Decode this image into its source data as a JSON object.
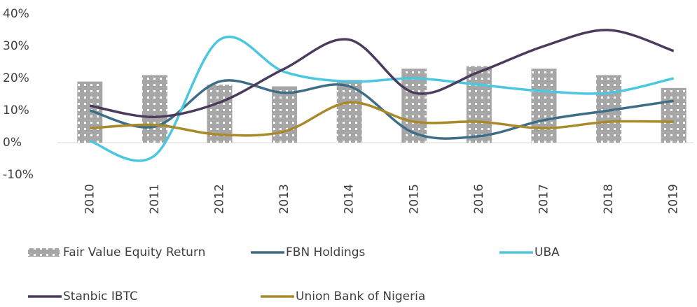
{
  "chart_data": {
    "type": "bar",
    "categories": [
      "2010",
      "2011",
      "2012",
      "2013",
      "2014",
      "2015",
      "2016",
      "2017",
      "2018",
      "2019"
    ],
    "ylim": [
      -10,
      40
    ],
    "yticks": [
      {
        "value": -10,
        "label": "-10%"
      },
      {
        "value": 0,
        "label": "0%"
      },
      {
        "value": 10,
        "label": "10%"
      },
      {
        "value": 20,
        "label": "20%"
      },
      {
        "value": 30,
        "label": "30%"
      },
      {
        "value": 40,
        "label": "40%"
      }
    ],
    "grid": false,
    "series": [
      {
        "name": "Fair Value Equity Return",
        "type": "bar",
        "color": "#a6a6a6",
        "values": [
          19,
          21,
          18,
          17.5,
          19.5,
          23,
          23.8,
          23,
          21,
          17
        ]
      },
      {
        "name": "FBN Holdings",
        "type": "line",
        "color": "#3e6e87",
        "values": [
          10,
          5,
          19,
          15.5,
          17.5,
          3,
          2,
          7,
          10,
          13
        ]
      },
      {
        "name": "UBA",
        "type": "line",
        "color": "#4bc8e0",
        "values": [
          0.5,
          -4,
          32,
          22,
          19,
          20,
          18,
          16,
          15.5,
          20
        ]
      },
      {
        "name": "Stanbic IBTC",
        "type": "line",
        "color": "#4b3b5c",
        "values": [
          11.5,
          8,
          12.5,
          23,
          32,
          15.5,
          22,
          30,
          35,
          28.5
        ]
      },
      {
        "name": "Union Bank of Nigeria",
        "type": "line",
        "color": "#a88a2a",
        "values": [
          4.5,
          5.5,
          2.5,
          3.5,
          12.5,
          6.5,
          6.5,
          4.5,
          6.5,
          6.5
        ]
      }
    ]
  }
}
